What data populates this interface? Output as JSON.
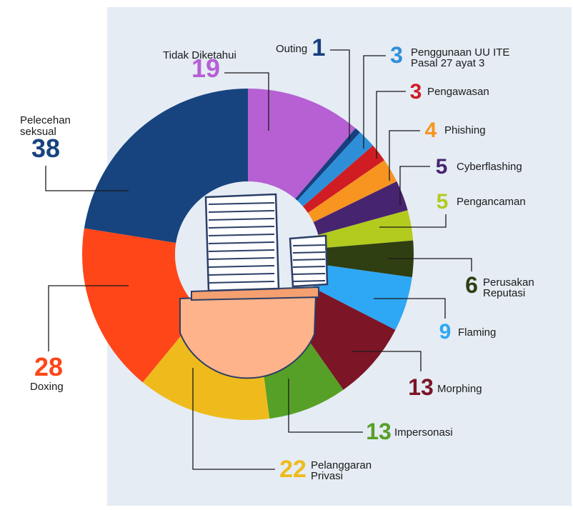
{
  "colors": {
    "panel_bg": "#e5ecf4",
    "leader_line": "#1a1a1a",
    "hole_fill": "#e5ecf4"
  },
  "center_icon": "stack-of-papers-icon",
  "chart_data": {
    "type": "donut",
    "start": "12-o-clock",
    "direction": "clockwise",
    "categories": [
      {
        "name": "Tidak Diketahui",
        "name_lines": [
          "Tidak Diketahui"
        ],
        "value": 19,
        "color": "#b660d3"
      },
      {
        "name": "Outing",
        "name_lines": [
          "Outing"
        ],
        "value": 1,
        "color": "#173f7e"
      },
      {
        "name": "Penggunaan UU ITE Pasal 27 ayat 3",
        "name_lines": [
          "Penggunaan UU ITE",
          "Pasal 27 ayat 3"
        ],
        "value": 3,
        "color": "#2e8fd8"
      },
      {
        "name": "Pengawasan",
        "name_lines": [
          "Pengawasan"
        ],
        "value": 3,
        "color": "#cf1d23"
      },
      {
        "name": "Phishing",
        "name_lines": [
          "Phishing"
        ],
        "value": 4,
        "color": "#f79520"
      },
      {
        "name": "Cyberflashing",
        "name_lines": [
          "Cyberflashing"
        ],
        "value": 5,
        "color": "#47246f"
      },
      {
        "name": "Pengancaman",
        "name_lines": [
          "Pengancaman"
        ],
        "value": 5,
        "color": "#b2cb1e"
      },
      {
        "name": "Perusakan Reputasi",
        "name_lines": [
          "Perusakan",
          "Reputasi"
        ],
        "value": 6,
        "color": "#2f3f12"
      },
      {
        "name": "Flaming",
        "name_lines": [
          "Flaming"
        ],
        "value": 9,
        "color": "#2ea8f4"
      },
      {
        "name": "Morphing",
        "name_lines": [
          "Morphing"
        ],
        "value": 13,
        "color": "#7c1526"
      },
      {
        "name": "Impersonasi",
        "name_lines": [
          "Impersonasi"
        ],
        "value": 13,
        "color": "#57a027"
      },
      {
        "name": "Pelanggaran Privasi",
        "name_lines": [
          "Pelanggaran",
          "Privasi"
        ],
        "value": 22,
        "color": "#efbb1c"
      },
      {
        "name": "Doxing",
        "name_lines": [
          "Doxing"
        ],
        "value": 28,
        "color": "#fe4619"
      },
      {
        "name": "Pelecehan seksual",
        "name_lines": [
          "Pelecehan",
          "seksual"
        ],
        "value": 38,
        "color": "#17447f"
      }
    ]
  }
}
